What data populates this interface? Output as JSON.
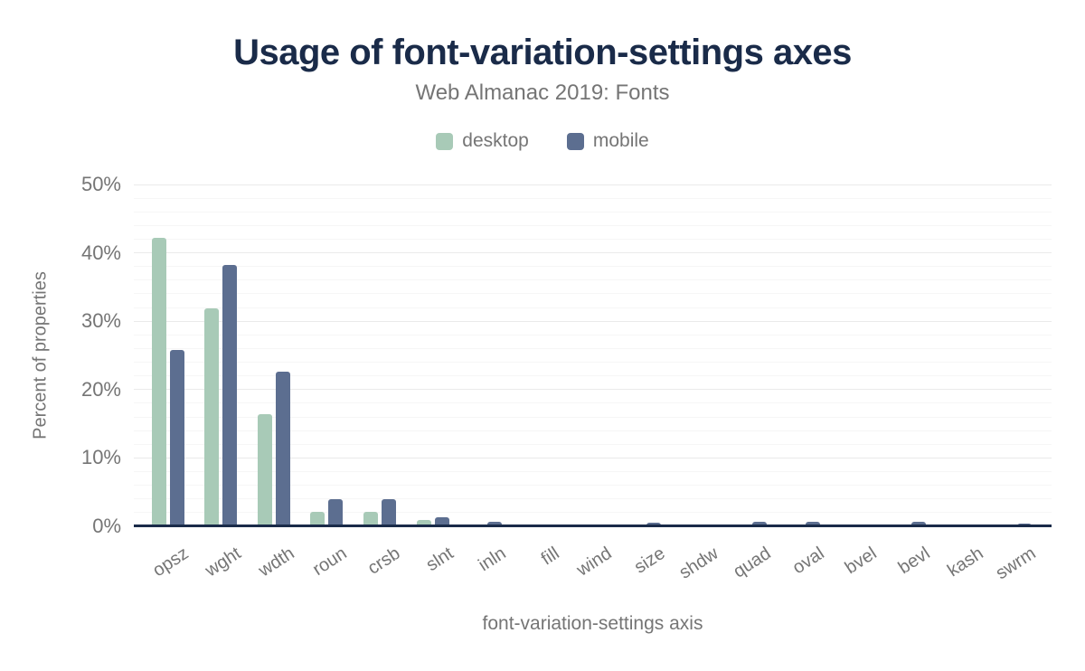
{
  "header": {
    "title": "Usage of font-variation-settings axes",
    "subtitle": "Web Almanac 2019: Fonts"
  },
  "colors": {
    "title": "#1a2b49",
    "muted_text": "#757575",
    "axis_line": "#1a2b49",
    "major_gridline": "#eaeaea",
    "minor_gridline": "#f6f6f6",
    "desktop": "#a8cab7",
    "mobile": "#5c6e90",
    "background": "#ffffff"
  },
  "chart_data": {
    "type": "bar",
    "title": "Usage of font-variation-settings axes",
    "subtitle": "Web Almanac 2019: Fonts",
    "xlabel": "font-variation-settings axis",
    "ylabel": "Percent of properties",
    "ylim": [
      0,
      50
    ],
    "y_ticks": [
      {
        "value": 0,
        "label": "0%"
      },
      {
        "value": 10,
        "label": "10%"
      },
      {
        "value": 20,
        "label": "20%"
      },
      {
        "value": 30,
        "label": "30%"
      },
      {
        "value": 40,
        "label": "40%"
      },
      {
        "value": 50,
        "label": "50%"
      }
    ],
    "grid": {
      "major_step": 10,
      "minor_step": 2
    },
    "legend_position": "top",
    "categories": [
      "opsz",
      "wght",
      "wdth",
      "roun",
      "crsb",
      "slnt",
      "inln",
      "fill",
      "wind",
      "size",
      "shdw",
      "quad",
      "oval",
      "bvel",
      "bevl",
      "kash",
      "swrm"
    ],
    "series": [
      {
        "name": "desktop",
        "color": "#a8cab7",
        "values": [
          42.2,
          31.9,
          16.4,
          2.1,
          2.1,
          0.9,
          0.3,
          0.3,
          0.3,
          0.3,
          0.3,
          0.3,
          0.3,
          0.3,
          0.3,
          0.3,
          0.1
        ]
      },
      {
        "name": "mobile",
        "color": "#5c6e90",
        "values": [
          25.8,
          38.2,
          22.6,
          4.0,
          4.0,
          1.3,
          0.6,
          0.0,
          0.0,
          0.5,
          0.0,
          0.6,
          0.6,
          0.0,
          0.6,
          0.0,
          0.4
        ]
      }
    ]
  }
}
